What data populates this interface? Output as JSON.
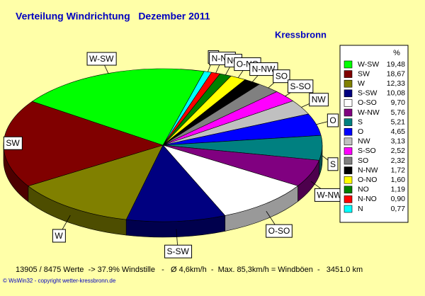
{
  "chart_data": {
    "type": "pie",
    "title": "Verteilung Windrichtung   Dezember 2011",
    "subtitle": "Kressbronn",
    "legend_header": "%",
    "categories": [
      "W-SW",
      "SW",
      "W",
      "S-SW",
      "O-SO",
      "W-NW",
      "S",
      "O",
      "NW",
      "S-SO",
      "SO",
      "N-NW",
      "O-NO",
      "NO",
      "N-NO",
      "N"
    ],
    "values": [
      19.48,
      18.67,
      12.33,
      10.08,
      9.7,
      5.76,
      5.21,
      4.65,
      3.13,
      2.52,
      2.32,
      1.72,
      1.6,
      1.19,
      0.9,
      0.77
    ],
    "value_labels": [
      "19,48",
      "18,67",
      "12,33",
      "10,08",
      "9,70",
      "5,76",
      "5,21",
      "4,65",
      "3,13",
      "2,52",
      "2,32",
      "1,72",
      "1,60",
      "1,19",
      "0,90",
      "0,77"
    ],
    "colors": [
      "#00ff00",
      "#800000",
      "#808000",
      "#000080",
      "#ffffff",
      "#800080",
      "#008080",
      "#0000ff",
      "#c0c0c0",
      "#ff00ff",
      "#808080",
      "#000000",
      "#ffff00",
      "#008000",
      "#ff0000",
      "#00ffff"
    ],
    "footer": "13905 / 8475 Werte  -> 37.9% Windstille   -   Ø 4,6km/h  -  Max. 85,3km/h = Windböen  -   3451.0 km",
    "copyright": "© WsWin32  -  copyright wetter-kressbronn.de"
  }
}
